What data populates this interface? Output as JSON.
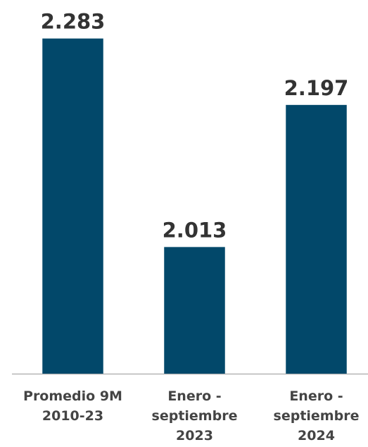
{
  "chart_data": {
    "type": "bar",
    "categories": [
      "Promedio 9M\n2010-23",
      "Enero -\nseptiembre\n2023",
      "Enero -\nseptiembre\n2024"
    ],
    "values": [
      2283,
      2013,
      2197
    ],
    "value_labels": [
      "2.283",
      "2.013",
      "2.197"
    ],
    "color": "#02486a",
    "ylim": [
      1849,
      2300
    ]
  }
}
